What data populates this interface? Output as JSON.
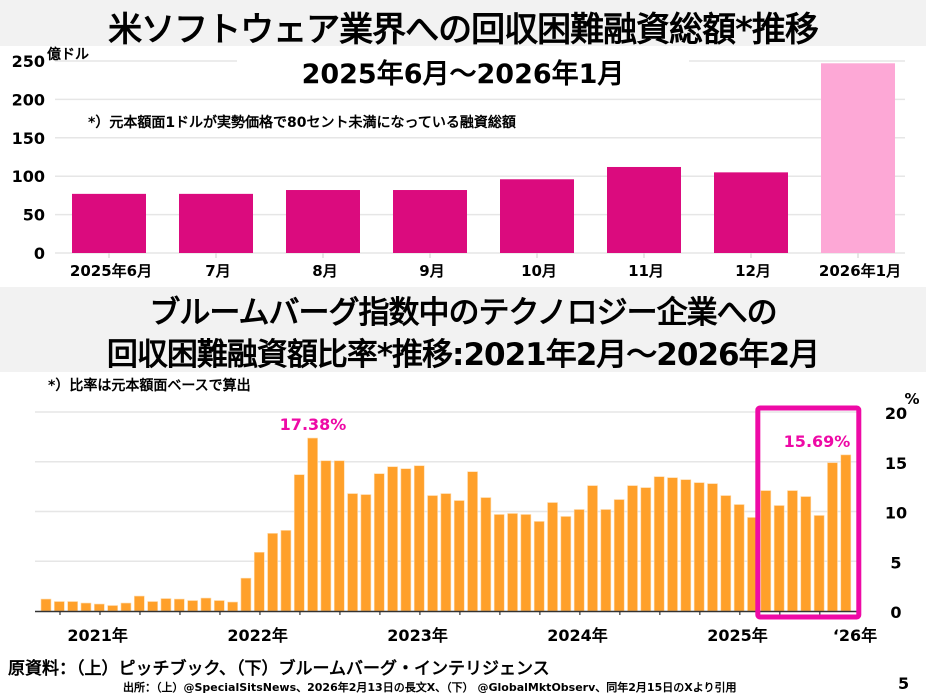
{
  "top": {
    "title": "米ソフトウェア業界への回収困難融資総額*推移",
    "subtitle": "2025年6月～2026年1月",
    "note": "*）元本額面1ドルが実勢価格で80セント未満になっている融資総額",
    "unit": "億ドル"
  },
  "bottom": {
    "title_line1": "ブルームバーグ指数中のテクノロジー企業への",
    "title_line2": "回収困難融資額比率*推移:2021年2月～2026年2月",
    "note": "*）比率は元本額面ベースで算出",
    "unit": "%"
  },
  "footer": {
    "source": "原資料：（上）ピッチブック、（下）ブルームバーグ・インテリジェンス",
    "citation": "出所：（上）@SpecialSitsNews、2026年2月13日の長文X、（下） @GlobalMktObserv、同年2月15日のXより引用",
    "page": "5"
  },
  "colors": {
    "top_bar": "#db0b7e",
    "top_bar_highlight": "#fda8d6",
    "bottom_bar": "#ffa02a",
    "highlight": "#ee0aa6",
    "grid": "#e6e6e6"
  },
  "chart_data": [
    {
      "type": "bar",
      "title": "米ソフトウェア業界への回収困難融資総額*推移 2025年6月～2026年1月",
      "ylabel": "億ドル",
      "xlabel": "",
      "ylim": [
        0,
        250
      ],
      "yticks": [
        0,
        50,
        100,
        150,
        200,
        250
      ],
      "grid": true,
      "categories": [
        "2025年6月",
        "7月",
        "8月",
        "9月",
        "10月",
        "11月",
        "12月",
        "2026年1月"
      ],
      "values": [
        77,
        77,
        82,
        82,
        96,
        112,
        105,
        247
      ],
      "highlight_index": 7
    },
    {
      "type": "bar",
      "title": "ブルームバーグ指数中のテクノロジー企業への回収困難融資額比率*推移:2021年2月～2026年2月",
      "ylabel": "%",
      "xlabel": "",
      "ylim": [
        0,
        20
      ],
      "yticks": [
        0,
        5,
        10,
        15,
        20
      ],
      "y_axis_side": "right",
      "grid": true,
      "start": "2021-02",
      "end": "2026-02",
      "year_labels": [
        {
          "label": "2021年",
          "index": 2
        },
        {
          "label": "2022年",
          "index": 14
        },
        {
          "label": "2023年",
          "index": 26
        },
        {
          "label": "2024年",
          "index": 38
        },
        {
          "label": "2025年",
          "index": 50
        },
        {
          "label": "‘26年",
          "index": 61
        }
      ],
      "values": [
        1.2,
        0.95,
        0.95,
        0.8,
        0.7,
        0.55,
        0.8,
        1.5,
        0.95,
        1.25,
        1.2,
        1.05,
        1.3,
        1.05,
        0.9,
        3.3,
        5.9,
        7.8,
        8.1,
        13.7,
        17.38,
        15.1,
        15.1,
        11.8,
        11.7,
        13.8,
        14.5,
        14.3,
        14.6,
        11.6,
        11.8,
        11.1,
        14.0,
        11.4,
        9.7,
        9.8,
        9.7,
        9.0,
        10.9,
        9.5,
        10.2,
        12.6,
        10.2,
        11.2,
        12.6,
        12.4,
        13.5,
        13.4,
        13.2,
        12.9,
        12.8,
        11.6,
        10.7,
        9.4,
        12.1,
        10.6,
        12.1,
        11.5,
        9.6,
        14.9,
        15.69
      ],
      "annotations": [
        {
          "label": "17.38%",
          "index": 20
        },
        {
          "label": "15.69%",
          "index": 60
        }
      ],
      "highlight_box": {
        "from_index": 54,
        "to_index": 60
      }
    }
  ]
}
